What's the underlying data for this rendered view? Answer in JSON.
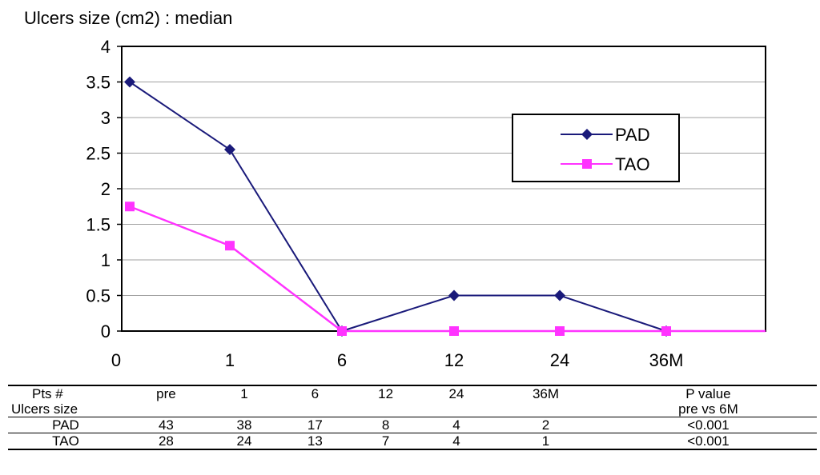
{
  "chart_data": {
    "type": "line",
    "title": "Ulcers size  (cm2) : median",
    "categories": [
      "0",
      "1",
      "6",
      "12",
      "24",
      "36M"
    ],
    "ylim": [
      0,
      4
    ],
    "yticks": [
      "0",
      "0.5",
      "1",
      "1.5",
      "2",
      "2.5",
      "3",
      "3.5",
      "4"
    ],
    "grid": true,
    "legend": "top-right",
    "series": [
      {
        "name": "PAD",
        "values": [
          3.5,
          2.55,
          0,
          0.5,
          0.5,
          0
        ],
        "color": "#1a1a7a",
        "marker": "diamond"
      },
      {
        "name": "TAO",
        "values": [
          1.75,
          1.2,
          0,
          0,
          0,
          0
        ],
        "color": "#ff33ff",
        "marker": "square"
      }
    ]
  },
  "table": {
    "header": [
      "Pts #",
      "pre",
      "1",
      "6",
      "12",
      "24",
      "36M",
      "P value"
    ],
    "header2": [
      "Ulcers size",
      "pre vs 6M"
    ],
    "rows": [
      {
        "label": "PAD",
        "values": [
          "43",
          "38",
          "17",
          "8",
          "4",
          "2",
          "<0.001"
        ]
      },
      {
        "label": "TAO",
        "values": [
          "28",
          "24",
          "13",
          "7",
          "4",
          "1",
          "<0.001"
        ]
      }
    ]
  }
}
